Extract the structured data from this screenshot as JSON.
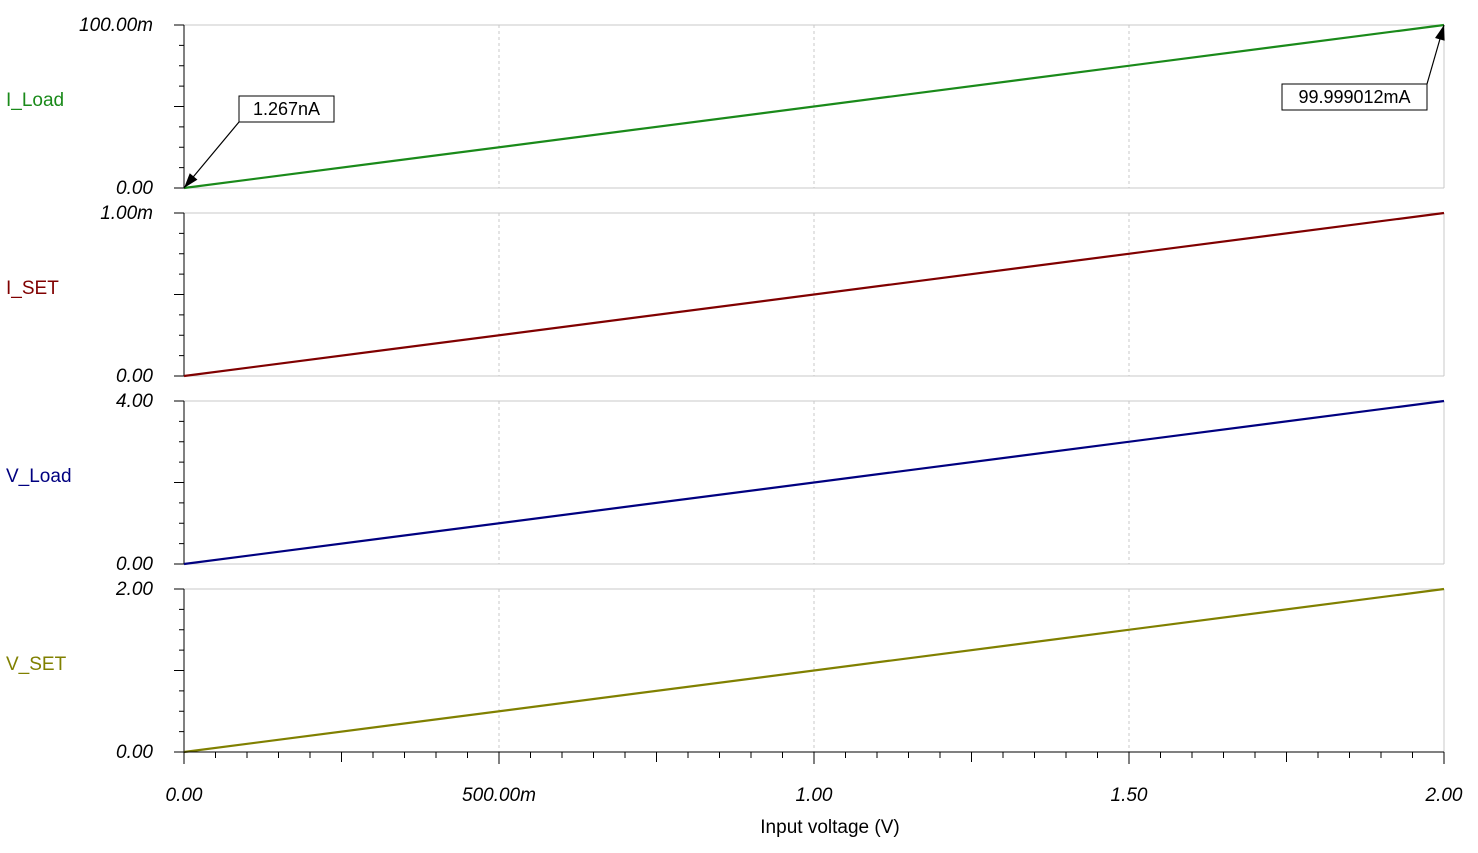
{
  "chart_data": {
    "type": "line",
    "xlabel": "Input voltage (V)",
    "x_range": [
      0,
      2
    ],
    "x_ticks": [
      {
        "value": 0,
        "label": "0.00"
      },
      {
        "value": 0.5,
        "label": "500.00m"
      },
      {
        "value": 1,
        "label": "1.00"
      },
      {
        "value": 1.5,
        "label": "1.50"
      },
      {
        "value": 2,
        "label": "2.00"
      }
    ],
    "grid": true,
    "channels": [
      {
        "name": "I_Load",
        "color": "#1a8a1a",
        "y_range": [
          0,
          0.1
        ],
        "y_tick_labels": [
          "0.00",
          "100.00m"
        ],
        "x": [
          0,
          2
        ],
        "y": [
          1.267e-09,
          0.099999012
        ],
        "annotations": [
          {
            "text": "1.267nA",
            "x": 0,
            "y": 1.267e-09
          },
          {
            "text": "99.999012mA",
            "x": 2,
            "y": 0.099999012
          }
        ]
      },
      {
        "name": "I_SET",
        "color": "#800000",
        "y_range": [
          0,
          0.001
        ],
        "y_tick_labels": [
          "0.00",
          "1.00m"
        ],
        "x": [
          0,
          2
        ],
        "y": [
          0,
          0.001
        ]
      },
      {
        "name": "V_Load",
        "color": "#000080",
        "y_range": [
          0,
          4
        ],
        "y_tick_labels": [
          "0.00",
          "4.00"
        ],
        "x": [
          0,
          2
        ],
        "y": [
          0,
          4
        ]
      },
      {
        "name": "V_SET",
        "color": "#808000",
        "y_range": [
          0,
          2
        ],
        "y_tick_labels": [
          "0.00",
          "2.00"
        ],
        "x": [
          0,
          2
        ],
        "y": [
          0,
          2
        ]
      }
    ]
  }
}
